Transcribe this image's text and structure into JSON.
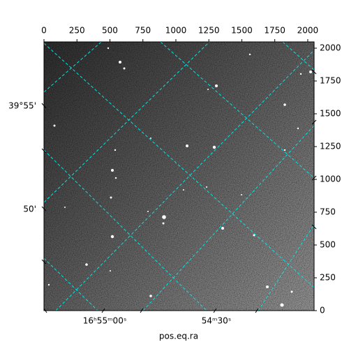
{
  "chart_data": {
    "type": "image",
    "xlabel": "pos.eq.ra",
    "xlim": [
      0,
      2048
    ],
    "ylim": [
      0,
      2048
    ],
    "xticks": [
      0,
      250,
      500,
      750,
      1000,
      1250,
      1500,
      1750,
      2000
    ],
    "yticks": [
      0,
      250,
      500,
      750,
      1000,
      1250,
      1500,
      1750,
      2000
    ],
    "bottom_labels": [
      "16ʰ55ᵐ00ˢ",
      "54ᵐ30ˢ"
    ],
    "left_labels": [
      "39°55'",
      "50'"
    ],
    "grid_color": "#00e5e5"
  }
}
